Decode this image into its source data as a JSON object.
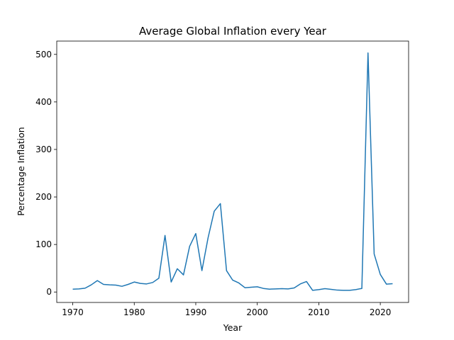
{
  "chart_data": {
    "type": "line",
    "title": "Average Global Inflation every Year",
    "xlabel": "Year",
    "ylabel": "Percentage Inflation",
    "xlim": [
      1967.4,
      2024.6
    ],
    "ylim": [
      -22,
      528
    ],
    "xticks": [
      1970,
      1980,
      1990,
      2000,
      2010,
      2020
    ],
    "yticks": [
      0,
      100,
      200,
      300,
      400,
      500
    ],
    "grid": false,
    "line_color": "#1f77b4",
    "series": [
      {
        "x": [
          1970,
          1971,
          1972,
          1973,
          1974,
          1975,
          1976,
          1977,
          1978,
          1979,
          1980,
          1981,
          1982,
          1983,
          1984,
          1985,
          1986,
          1987,
          1988,
          1989,
          1990,
          1991,
          1992,
          1993,
          1994,
          1995,
          1996,
          1997,
          1998,
          1999,
          2000,
          2001,
          2002,
          2003,
          2004,
          2005,
          2006,
          2007,
          2008,
          2009,
          2010,
          2011,
          2012,
          2013,
          2014,
          2015,
          2016,
          2017,
          2018,
          2019,
          2020,
          2021,
          2022
        ],
        "y": [
          6,
          6.5,
          8,
          15,
          24,
          16,
          15,
          14.5,
          12,
          16,
          21,
          18,
          17,
          20,
          29,
          119,
          21,
          49,
          36,
          96,
          123,
          45,
          114,
          170,
          186,
          45,
          25,
          19,
          9,
          10,
          11,
          7.5,
          6,
          6.5,
          7,
          6.5,
          8.5,
          17,
          22,
          3.5,
          5,
          7,
          5.5,
          4,
          3.5,
          3.5,
          5,
          7.5,
          503,
          80,
          37,
          16.5,
          17.5
        ]
      }
    ]
  }
}
